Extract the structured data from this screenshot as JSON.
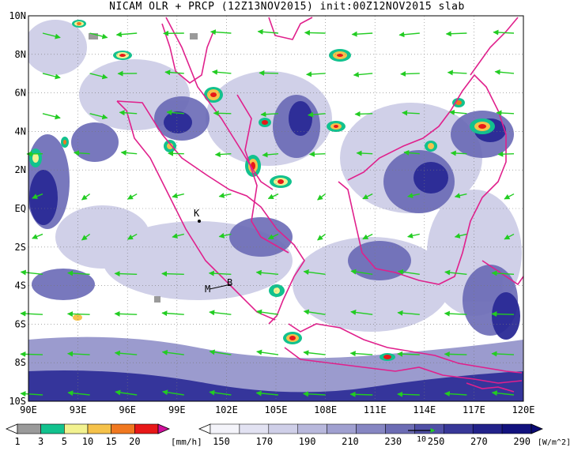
{
  "title": "NICAM OLR + PRCP (12Z13NOV2015) init:00Z12NOV2015 slab",
  "map": {
    "lon_labels": [
      "90E",
      "93E",
      "96E",
      "99E",
      "102E",
      "105E",
      "108E",
      "111E",
      "114E",
      "117E",
      "120E"
    ],
    "lat_labels": [
      "10N",
      "8N",
      "6N",
      "4N",
      "2N",
      "EQ",
      "2S",
      "4S",
      "6S",
      "8S",
      "10S"
    ],
    "station_labels": [
      "K",
      "M",
      "B"
    ],
    "coastline_color": "#e0208c",
    "vector_color": "#22cc22",
    "olr_color": "#2a2a96"
  },
  "legend_prcp": {
    "values": [
      "1",
      "3",
      "5",
      "10",
      "15",
      "20"
    ],
    "unit": "[mm/h]",
    "colors": [
      "#9a9a9a",
      "#12c28e",
      "#f2f290",
      "#f5c24a",
      "#f07820",
      "#e81818",
      "#d0109c"
    ]
  },
  "legend_olr": {
    "values": [
      "150",
      "170",
      "190",
      "210",
      "230",
      "250",
      "270",
      "290"
    ],
    "unit": "[W/m^2]",
    "colors": [
      "#f4f4fa",
      "#e2e2f2",
      "#cfcfe8",
      "#b8b8dc",
      "#a0a0d0",
      "#8686c2",
      "#6c6cb4",
      "#5050a6",
      "#383898",
      "#22228a",
      "#12127e"
    ],
    "vector_ref": "10"
  }
}
